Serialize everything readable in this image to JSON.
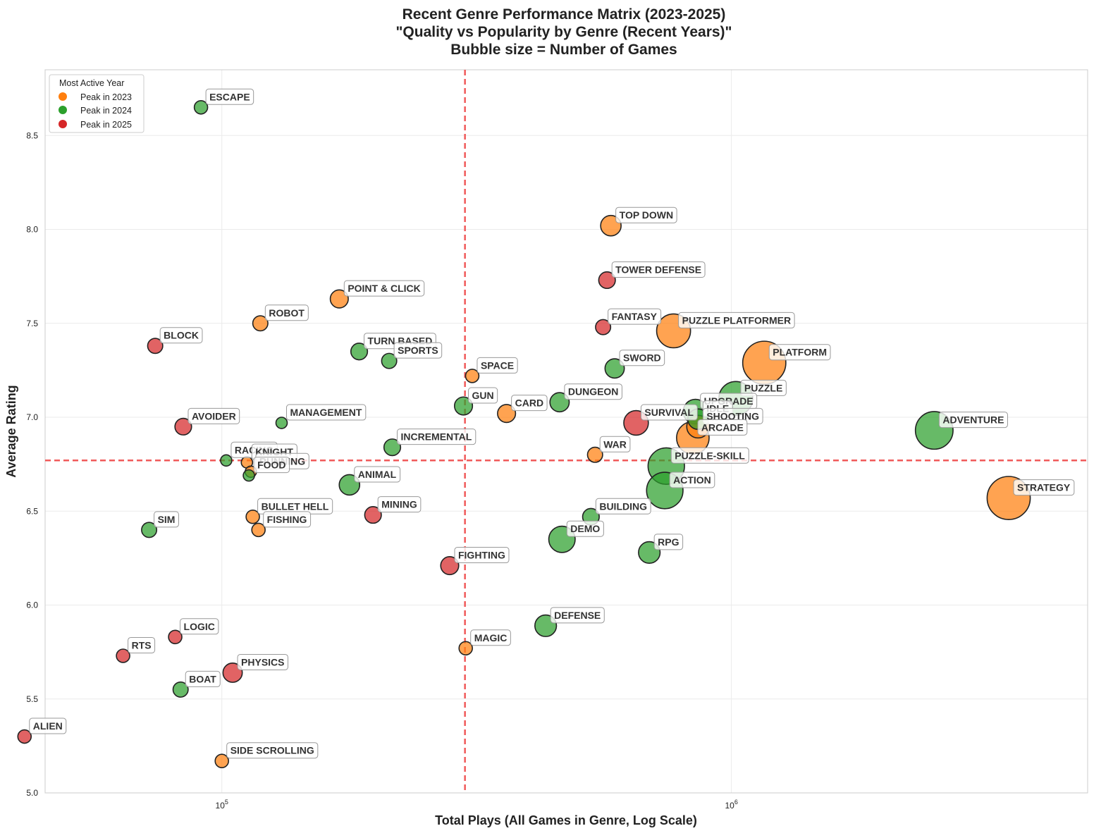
{
  "chart_data": {
    "type": "scatter",
    "title_lines": [
      "Recent Genre Performance Matrix (2023-2025)",
      "\"Quality vs Popularity by Genre (Recent Years)\"",
      "Bubble size = Number of Games"
    ],
    "xlabel": "Total Plays (All Games in Genre, Log Scale)",
    "ylabel": "Average Rating",
    "x_scale": "log",
    "xlim": [
      45000,
      5000000
    ],
    "ylim": [
      5.0,
      8.85
    ],
    "y_ticks": [
      5.0,
      5.5,
      6.0,
      6.5,
      7.0,
      7.5,
      8.0,
      8.5
    ],
    "y_tick_labels": [
      "5.0",
      "5.5",
      "6.0",
      "6.5",
      "7.0",
      "7.5",
      "8.0",
      "8.5"
    ],
    "x_ticks": [
      100000,
      1000000
    ],
    "x_tick_labels": [
      {
        "base": "10",
        "exp": "5"
      },
      {
        "base": "10",
        "exp": "6"
      }
    ],
    "reference_lines": {
      "x": 300000,
      "y": 6.77,
      "color": "#f05a5a",
      "style": "dashed"
    },
    "legend": {
      "title": "Most Active Year",
      "position": "top-left",
      "entries": [
        {
          "label": "Peak in 2023",
          "color": "#ff7f0e"
        },
        {
          "label": "Peak in 2024",
          "color": "#2ca02c"
        },
        {
          "label": "Peak in 2025",
          "color": "#d62728"
        }
      ]
    },
    "colors": {
      "2023": "#ff7f0e",
      "2024": "#2ca02c",
      "2025": "#d62728"
    },
    "points": [
      {
        "label": "ESCAPE",
        "x": 91000,
        "y": 8.65,
        "games": 3,
        "year": "2024"
      },
      {
        "label": "TOP DOWN",
        "x": 580000,
        "y": 8.02,
        "games": 8,
        "year": "2023"
      },
      {
        "label": "TOWER DEFENSE",
        "x": 570000,
        "y": 7.73,
        "games": 5,
        "year": "2025"
      },
      {
        "label": "POINT & CLICK",
        "x": 170000,
        "y": 7.63,
        "games": 6,
        "year": "2023"
      },
      {
        "label": "ROBOT",
        "x": 119000,
        "y": 7.5,
        "games": 4,
        "year": "2023"
      },
      {
        "label": "FANTASY",
        "x": 560000,
        "y": 7.48,
        "games": 4,
        "year": "2025"
      },
      {
        "label": "PUZZLE PLATFORMER",
        "x": 770000,
        "y": 7.46,
        "games": 24,
        "year": "2023"
      },
      {
        "label": "BLOCK",
        "x": 74000,
        "y": 7.38,
        "games": 4,
        "year": "2025"
      },
      {
        "label": "TURN BASED",
        "x": 186000,
        "y": 7.35,
        "games": 5,
        "year": "2024"
      },
      {
        "label": "SPORTS",
        "x": 213000,
        "y": 7.3,
        "games": 4,
        "year": "2024"
      },
      {
        "label": "PLATFORM",
        "x": 1160000,
        "y": 7.29,
        "games": 40,
        "year": "2023"
      },
      {
        "label": "SWORD",
        "x": 590000,
        "y": 7.26,
        "games": 7,
        "year": "2024"
      },
      {
        "label": "SPACE",
        "x": 310000,
        "y": 7.22,
        "games": 3,
        "year": "2023"
      },
      {
        "label": "PUZZLE",
        "x": 1020000,
        "y": 7.1,
        "games": 24,
        "year": "2024"
      },
      {
        "label": "DUNGEON",
        "x": 460000,
        "y": 7.08,
        "games": 7,
        "year": "2024"
      },
      {
        "label": "GUN",
        "x": 298000,
        "y": 7.06,
        "games": 6,
        "year": "2024"
      },
      {
        "label": "UPGRADE",
        "x": 850000,
        "y": 7.03,
        "games": 12,
        "year": "2024"
      },
      {
        "label": "CARD",
        "x": 362000,
        "y": 7.02,
        "games": 6,
        "year": "2023"
      },
      {
        "label": "IDLE",
        "x": 860000,
        "y": 6.99,
        "games": 8,
        "year": "2024"
      },
      {
        "label": "SURVIVAL",
        "x": 650000,
        "y": 6.97,
        "games": 12,
        "year": "2025"
      },
      {
        "label": "MANAGEMENT",
        "x": 131000,
        "y": 6.97,
        "games": 2,
        "year": "2024"
      },
      {
        "label": "SHOOTING",
        "x": 860000,
        "y": 6.95,
        "games": 10,
        "year": "2023"
      },
      {
        "label": "AVOIDER",
        "x": 84000,
        "y": 6.95,
        "games": 5,
        "year": "2025"
      },
      {
        "label": "ADVENTURE",
        "x": 2500000,
        "y": 6.93,
        "games": 30,
        "year": "2024"
      },
      {
        "label": "ARCADE",
        "x": 840000,
        "y": 6.89,
        "games": 22,
        "year": "2023"
      },
      {
        "label": "INCREMENTAL",
        "x": 216000,
        "y": 6.84,
        "games": 5,
        "year": "2024"
      },
      {
        "label": "WAR",
        "x": 540000,
        "y": 6.8,
        "games": 4,
        "year": "2023"
      },
      {
        "label": "RACING",
        "x": 102000,
        "y": 6.77,
        "games": 2,
        "year": "2024"
      },
      {
        "label": "KNIGHT",
        "x": 112000,
        "y": 6.76,
        "games": 2,
        "year": "2023"
      },
      {
        "label": "PUZZLE-SKILL",
        "x": 745000,
        "y": 6.74,
        "games": 28,
        "year": "2024"
      },
      {
        "label": "RUNNING",
        "x": 114000,
        "y": 6.71,
        "games": 2,
        "year": "2023"
      },
      {
        "label": "FOOD",
        "x": 113000,
        "y": 6.69,
        "games": 2,
        "year": "2024"
      },
      {
        "label": "ANIMAL",
        "x": 178000,
        "y": 6.64,
        "games": 8,
        "year": "2024"
      },
      {
        "label": "ACTION",
        "x": 740000,
        "y": 6.61,
        "games": 28,
        "year": "2024"
      },
      {
        "label": "STRATEGY",
        "x": 3500000,
        "y": 6.57,
        "games": 40,
        "year": "2023"
      },
      {
        "label": "BULLET HELL",
        "x": 115000,
        "y": 6.47,
        "games": 3,
        "year": "2023"
      },
      {
        "label": "BUILDING",
        "x": 530000,
        "y": 6.47,
        "games": 5,
        "year": "2024"
      },
      {
        "label": "MINING",
        "x": 198000,
        "y": 6.48,
        "games": 5,
        "year": "2025"
      },
      {
        "label": "FISHING",
        "x": 118000,
        "y": 6.4,
        "games": 3,
        "year": "2023"
      },
      {
        "label": "SIM",
        "x": 72000,
        "y": 6.4,
        "games": 4,
        "year": "2024"
      },
      {
        "label": "DEMO",
        "x": 465000,
        "y": 6.35,
        "games": 14,
        "year": "2024"
      },
      {
        "label": "RPG",
        "x": 690000,
        "y": 6.28,
        "games": 9,
        "year": "2024"
      },
      {
        "label": "FIGHTING",
        "x": 280000,
        "y": 6.21,
        "games": 6,
        "year": "2025"
      },
      {
        "label": "DEFENSE",
        "x": 432000,
        "y": 5.89,
        "games": 9,
        "year": "2024"
      },
      {
        "label": "LOGIC",
        "x": 81000,
        "y": 5.83,
        "games": 3,
        "year": "2025"
      },
      {
        "label": "MAGIC",
        "x": 301000,
        "y": 5.77,
        "games": 3,
        "year": "2023"
      },
      {
        "label": "RTS",
        "x": 64000,
        "y": 5.73,
        "games": 3,
        "year": "2025"
      },
      {
        "label": "PHYSICS",
        "x": 105000,
        "y": 5.64,
        "games": 7,
        "year": "2025"
      },
      {
        "label": "BOAT",
        "x": 83000,
        "y": 5.55,
        "games": 4,
        "year": "2024"
      },
      {
        "label": "ALIEN",
        "x": 41000,
        "y": 5.3,
        "games": 3,
        "year": "2025"
      },
      {
        "label": "SIDE SCROLLING",
        "x": 100000,
        "y": 5.17,
        "games": 3,
        "year": "2023"
      }
    ]
  }
}
